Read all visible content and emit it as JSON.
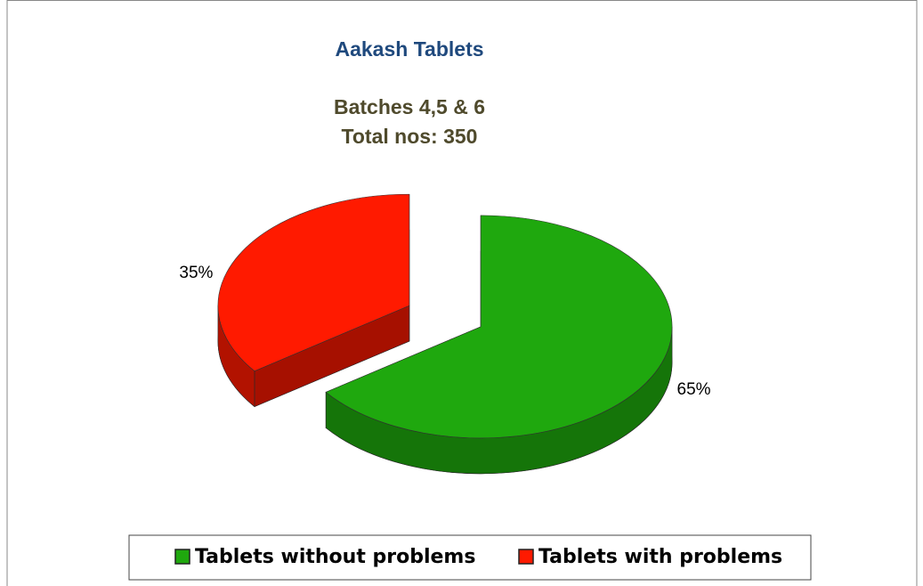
{
  "chart_data": {
    "type": "pie",
    "title": "Aakash Tablets",
    "subtitle": [
      "Batches 4,5 & 6",
      "Total nos: 350"
    ],
    "categories": [
      "Tablets without problems",
      "Tablets with problems"
    ],
    "values": [
      65,
      35
    ],
    "value_labels": [
      "65%",
      "35%"
    ],
    "colors": [
      "#1fa80e",
      "#ff1a00"
    ],
    "legend": "bottom"
  }
}
